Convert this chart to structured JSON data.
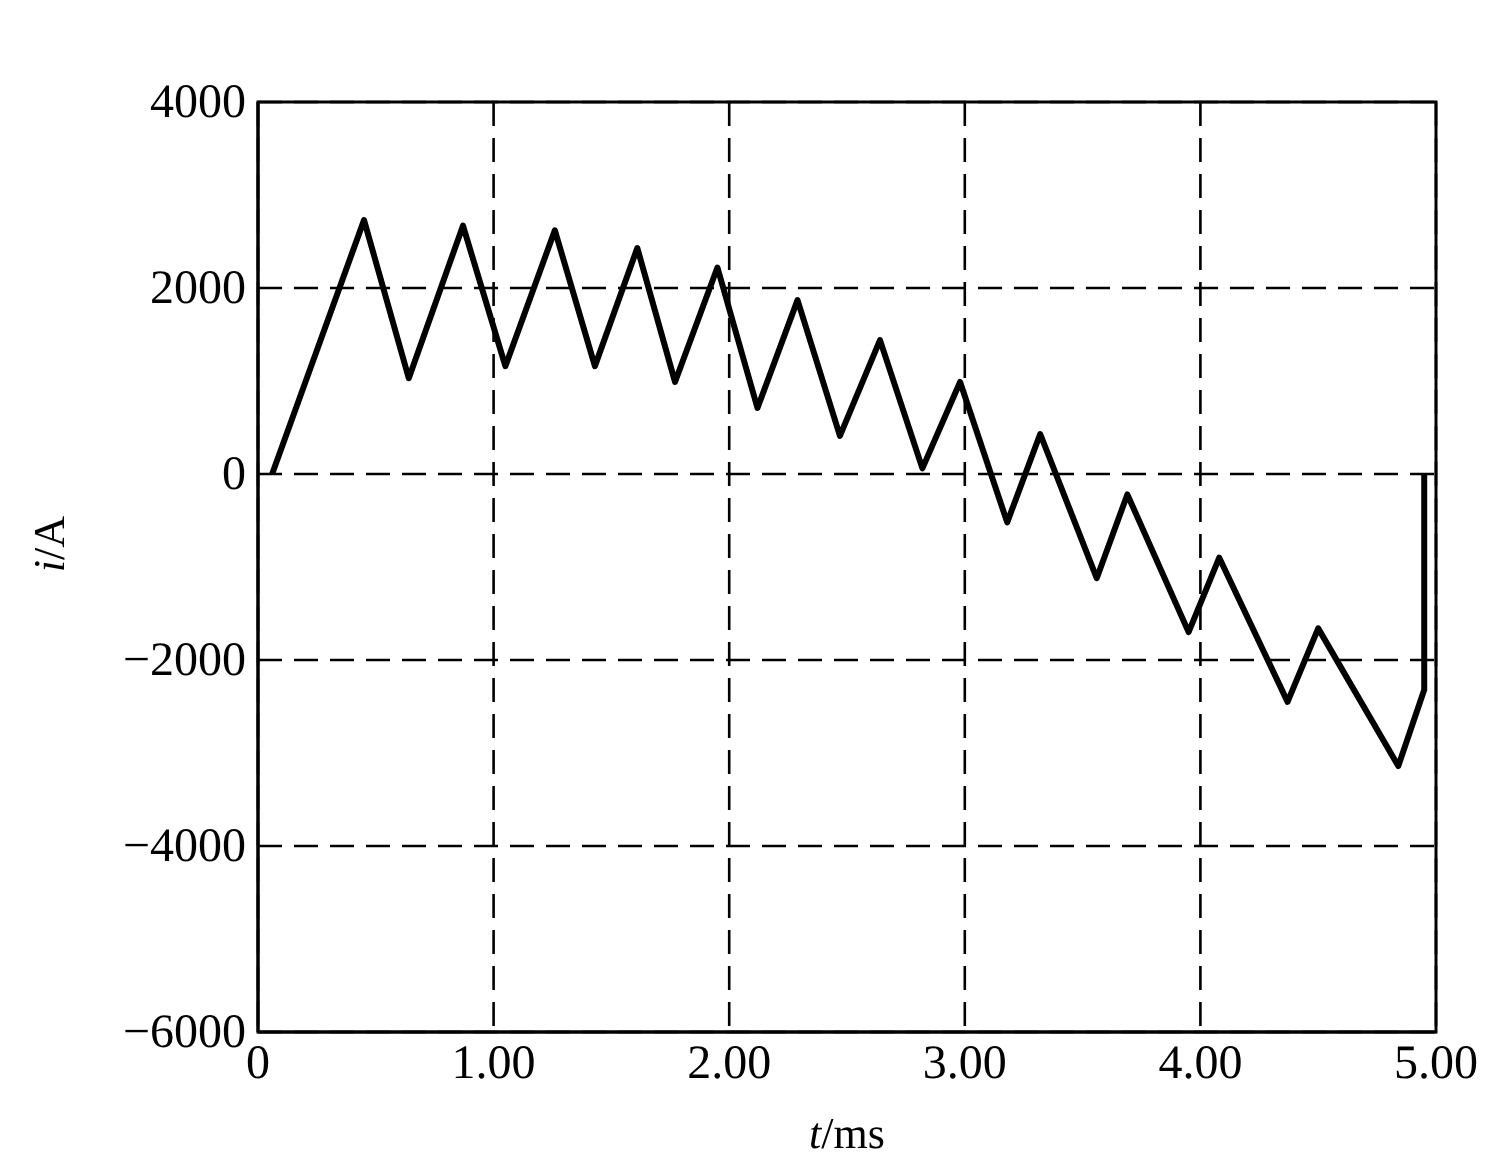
{
  "chart_data": {
    "type": "line",
    "xlabel": "t/ms",
    "ylabel": "i/A",
    "x": [
      0.06,
      0.45,
      0.64,
      0.87,
      1.05,
      1.26,
      1.43,
      1.61,
      1.77,
      1.95,
      2.12,
      2.29,
      2.47,
      2.64,
      2.82,
      2.98,
      3.18,
      3.32,
      3.56,
      3.69,
      3.95,
      4.08,
      4.37,
      4.5,
      4.84,
      4.95,
      4.95
    ],
    "series": [
      {
        "color": "#000000",
        "values": [
          0,
          2730,
          1030,
          2670,
          1160,
          2620,
          1160,
          2430,
          990,
          2220,
          710,
          1870,
          410,
          1440,
          60,
          990,
          -520,
          430,
          -1120,
          -220,
          -1700,
          -900,
          -2450,
          -1660,
          -3140,
          -2320,
          0
        ]
      }
    ],
    "xlim": [
      0,
      5
    ],
    "xticks": [
      0,
      {
        "value": 1,
        "label": "1.00"
      },
      {
        "value": 2,
        "label": "2.00"
      },
      {
        "value": 3,
        "label": "3.00"
      },
      {
        "value": 4,
        "label": "4.00"
      },
      {
        "value": 5,
        "label": "5.00"
      }
    ],
    "ylim": [
      -6000,
      4000
    ],
    "yticks": [
      -6000,
      -4000,
      -2000,
      0,
      2000,
      4000
    ],
    "grid": true,
    "line_style": "solid",
    "marker": "none"
  }
}
